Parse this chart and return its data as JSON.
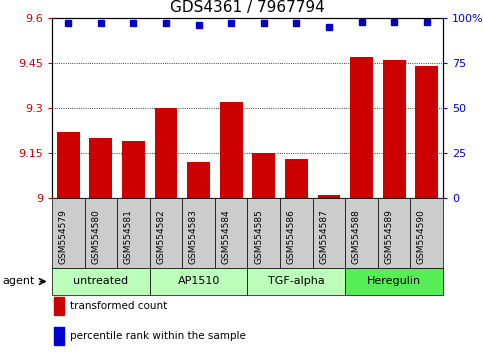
{
  "title": "GDS4361 / 7967794",
  "categories": [
    "GSM554579",
    "GSM554580",
    "GSM554581",
    "GSM554582",
    "GSM554583",
    "GSM554584",
    "GSM554585",
    "GSM554586",
    "GSM554587",
    "GSM554588",
    "GSM554589",
    "GSM554590"
  ],
  "red_values": [
    9.22,
    9.2,
    9.19,
    9.3,
    9.12,
    9.32,
    9.15,
    9.13,
    9.01,
    9.47,
    9.46,
    9.44
  ],
  "blue_values": [
    97,
    97,
    97,
    97,
    96,
    97,
    97,
    97,
    95,
    98,
    98,
    98
  ],
  "ylim_left": [
    9.0,
    9.6
  ],
  "ylim_right": [
    0,
    100
  ],
  "yticks_left": [
    9.0,
    9.15,
    9.3,
    9.45,
    9.6
  ],
  "ytick_labels_left": [
    "9",
    "9.15",
    "9.3",
    "9.45",
    "9.6"
  ],
  "yticks_right": [
    0,
    25,
    50,
    75,
    100
  ],
  "ytick_labels_right": [
    "0",
    "25",
    "50",
    "75",
    "100%"
  ],
  "bar_color": "#cc0000",
  "dot_color": "#0000cc",
  "groups": [
    {
      "label": "untreated",
      "start": 0,
      "end": 3
    },
    {
      "label": "AP1510",
      "start": 3,
      "end": 6
    },
    {
      "label": "TGF-alpha",
      "start": 6,
      "end": 9
    },
    {
      "label": "Heregulin",
      "start": 9,
      "end": 12
    }
  ],
  "group_colors": [
    "#bbffbb",
    "#bbffbb",
    "#bbffbb",
    "#55ee55"
  ],
  "cat_bg": "#cccccc",
  "legend_bar_label": "transformed count",
  "legend_dot_label": "percentile rank within the sample",
  "agent_label": "agent",
  "bg_color": "#ffffff",
  "title_fontsize": 11,
  "tick_fontsize": 8,
  "cat_fontsize": 6.5,
  "grp_fontsize": 8,
  "leg_fontsize": 7.5
}
